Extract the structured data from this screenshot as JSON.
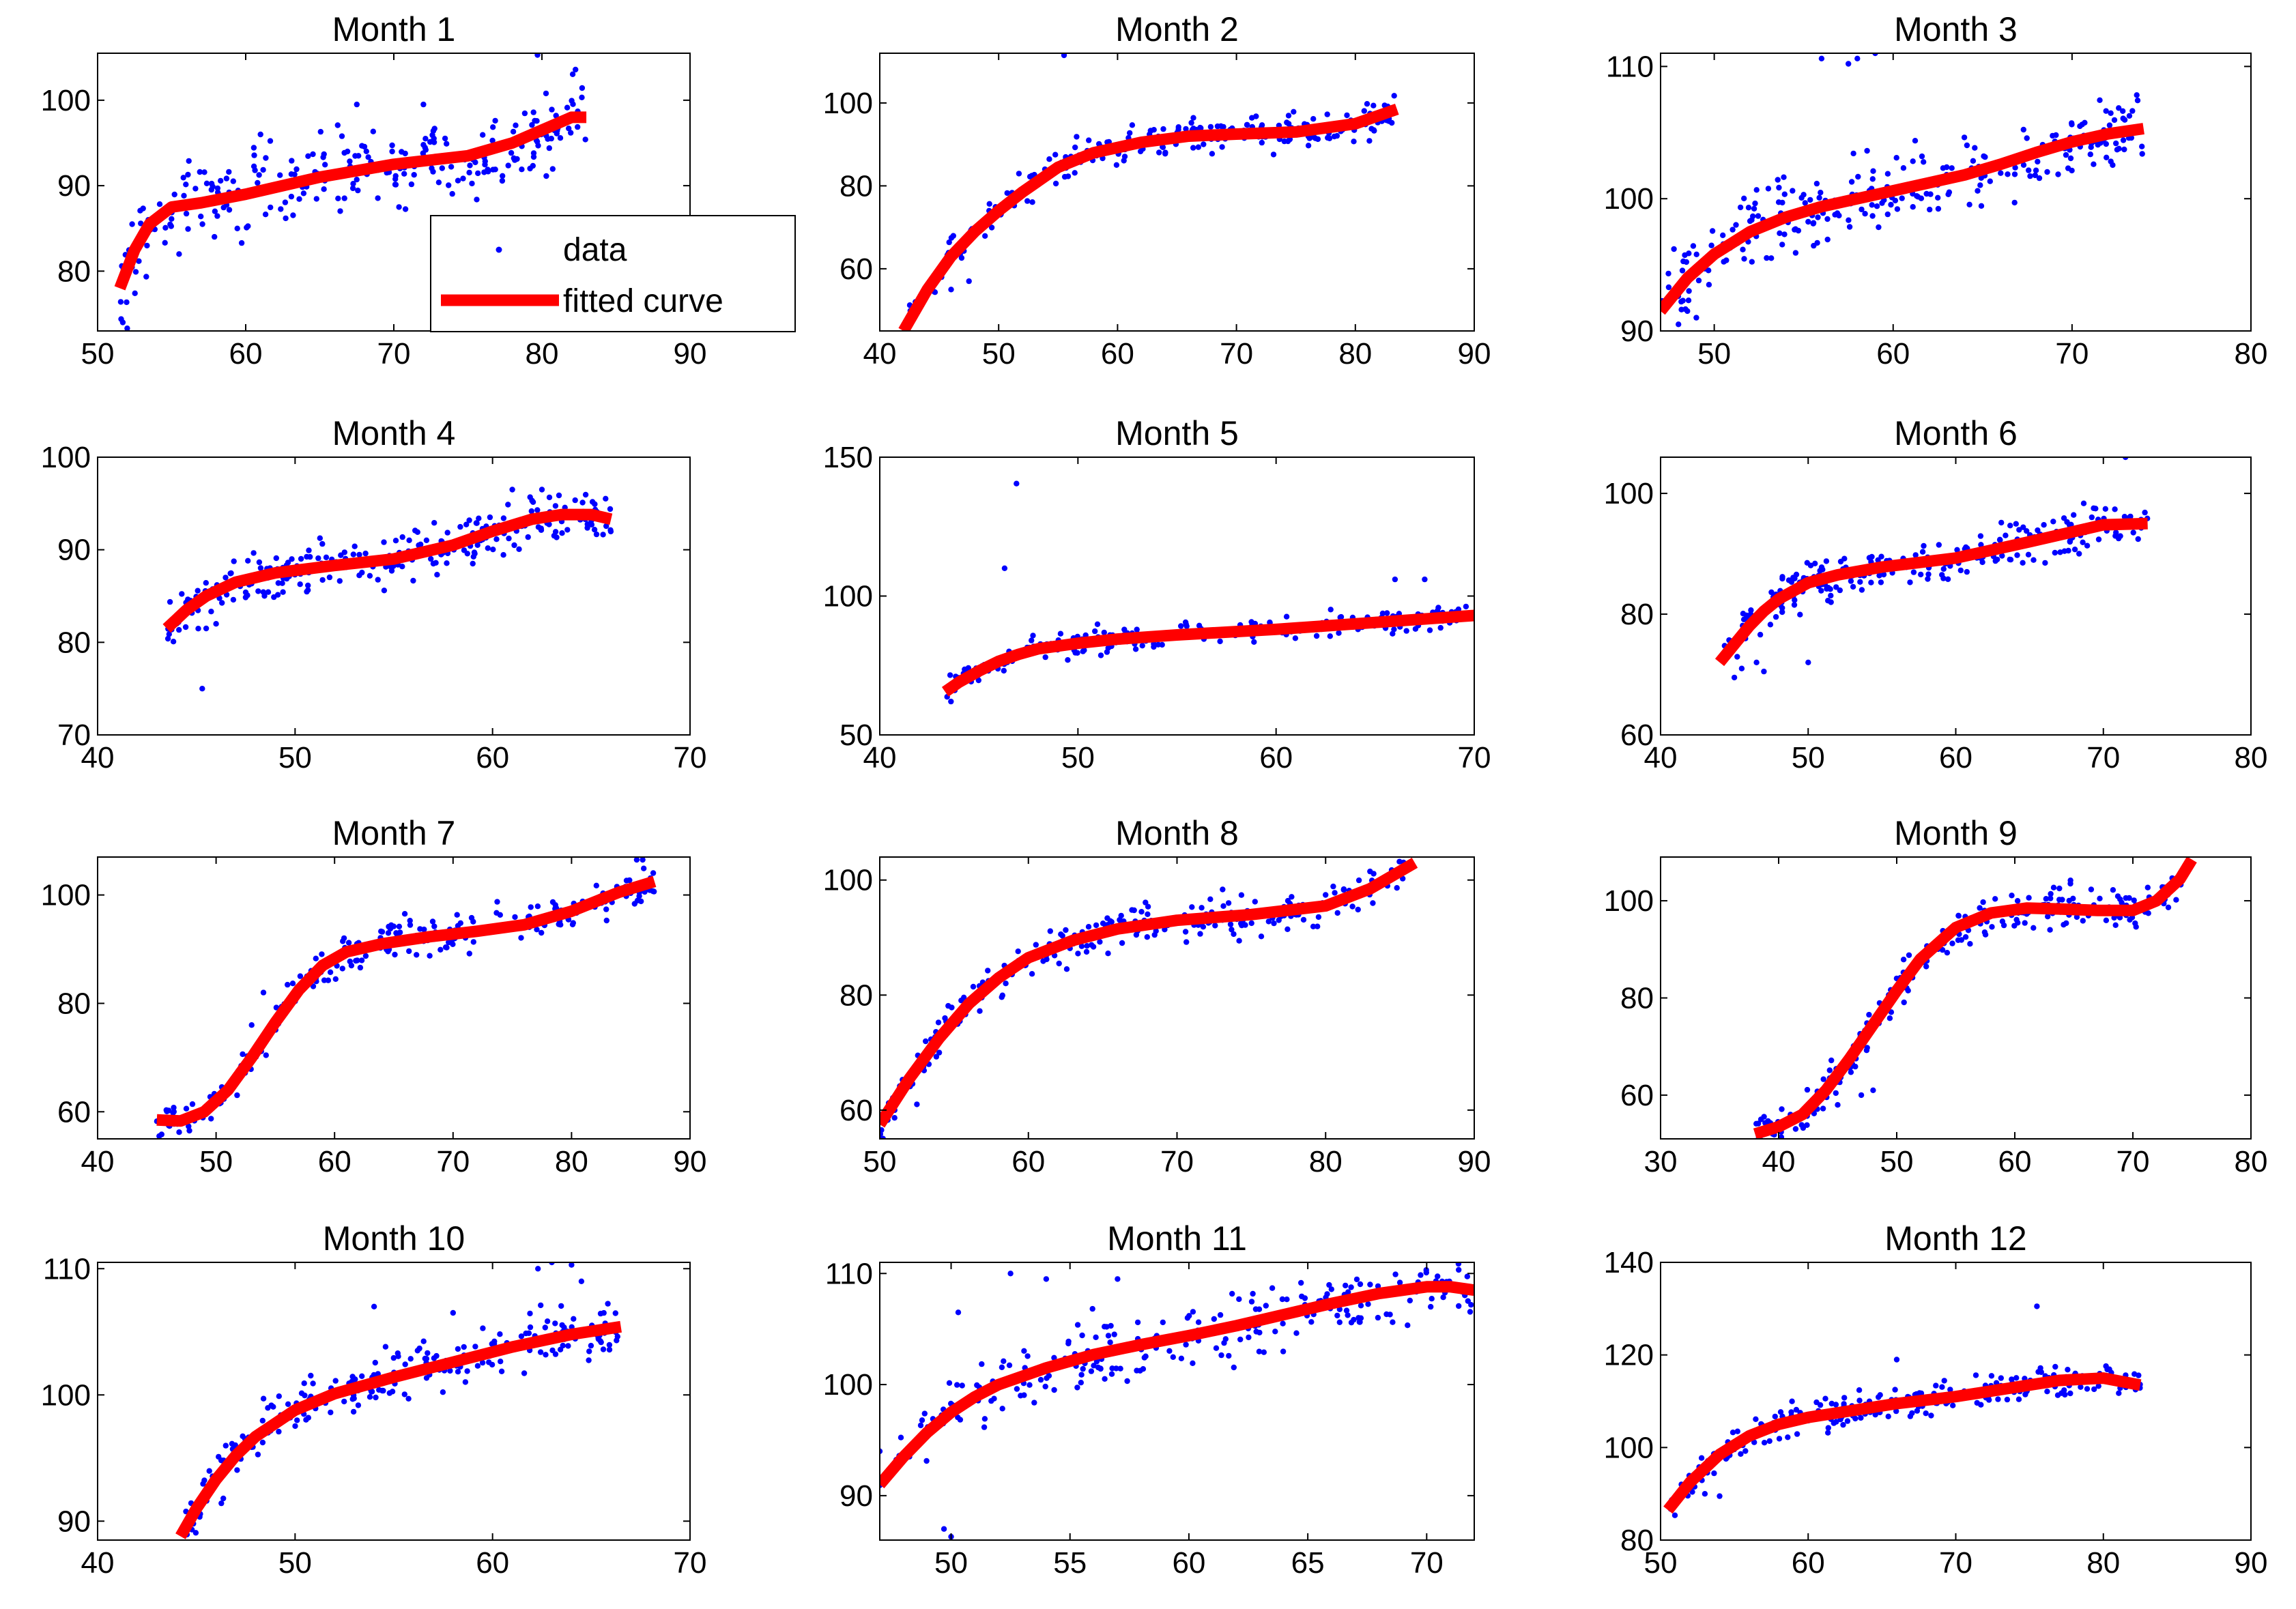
{
  "figure": {
    "background": "#ffffff"
  },
  "colors": {
    "data": "#0000ff",
    "fit": "#ff0000",
    "axes": "#000000"
  },
  "legend": {
    "entries": [
      "data",
      "fitted curve"
    ],
    "placement": "inside lower-right of Month 1"
  },
  "chart_data": [
    {
      "type": "scatter",
      "title": "Month 1",
      "xlim": [
        50,
        90
      ],
      "ylim": [
        73,
        105.5
      ],
      "xticks": [
        50,
        60,
        70,
        80,
        90
      ],
      "yticks": [
        80,
        90,
        100
      ],
      "fit": {
        "x": [
          51.5,
          52.5,
          53.5,
          55,
          57,
          60,
          65,
          70,
          75,
          78,
          80,
          82,
          83
        ],
        "y": [
          78,
          82.5,
          85.5,
          87.5,
          88,
          89,
          91,
          92.5,
          93.5,
          95,
          96.5,
          98,
          98
        ]
      },
      "outliers": [
        [
          51.7,
          74
        ],
        [
          52,
          73.3
        ],
        [
          55.5,
          82
        ],
        [
          61,
          96
        ],
        [
          67.5,
          99.5
        ],
        [
          72,
          99.5
        ],
        [
          79.7,
          105.3
        ]
      ],
      "spread": 3.5
    },
    {
      "type": "scatter",
      "title": "Month 2",
      "xlim": [
        40,
        90
      ],
      "ylim": [
        45,
        112
      ],
      "xticks": [
        40,
        50,
        60,
        70,
        80,
        90
      ],
      "yticks": [
        60,
        80,
        100
      ],
      "fit": {
        "x": [
          42,
          44,
          46,
          48,
          50,
          52,
          55,
          58,
          62,
          66,
          70,
          75,
          80,
          83.5
        ],
        "y": [
          45,
          55,
          63,
          69,
          74,
          78.5,
          84.5,
          88,
          90.5,
          92,
          92.5,
          93,
          95,
          98.5
        ]
      },
      "outliers": [
        [
          55.5,
          111.5
        ],
        [
          46,
          55
        ],
        [
          47.5,
          57
        ],
        [
          43,
          52
        ]
      ],
      "spread": 3
    },
    {
      "type": "scatter",
      "title": "Month 3",
      "xlim": [
        47,
        80
      ],
      "ylim": [
        90,
        111
      ],
      "xticks": [
        50,
        60,
        70,
        80
      ],
      "yticks": [
        90,
        100,
        110
      ],
      "fit": {
        "x": [
          47,
          48.5,
          50,
          52,
          54,
          56,
          58,
          60,
          62,
          64,
          66,
          68,
          70,
          72,
          74
        ],
        "y": [
          91.5,
          94,
          95.8,
          97.5,
          98.6,
          99.4,
          100,
          100.6,
          101.2,
          101.8,
          102.6,
          103.5,
          104.3,
          104.9,
          105.3
        ]
      },
      "outliers": [
        [
          56,
          110.6
        ],
        [
          58,
          110.6
        ],
        [
          59,
          111
        ],
        [
          57.5,
          110.2
        ],
        [
          48,
          90.5
        ],
        [
          49,
          91
        ],
        [
          48.5,
          91.5
        ]
      ],
      "spread": 2
    },
    {
      "type": "scatter",
      "title": "Month 4",
      "xlim": [
        40,
        70
      ],
      "ylim": [
        70,
        100
      ],
      "xticks": [
        40,
        50,
        60,
        70
      ],
      "yticks": [
        70,
        80,
        90,
        100
      ],
      "fit": {
        "x": [
          43.5,
          44.5,
          45.5,
          47,
          49,
          52,
          55,
          58,
          60,
          62,
          63.5,
          65,
          66
        ],
        "y": [
          81.5,
          83.5,
          85,
          86.5,
          87.5,
          88.3,
          89,
          90.5,
          92,
          93.3,
          93.8,
          93.8,
          93.3
        ]
      },
      "outliers": [
        [
          45.3,
          75
        ],
        [
          45.5,
          81.5
        ],
        [
          44,
          82
        ],
        [
          46,
          82
        ],
        [
          57,
          88.5
        ],
        [
          59,
          88.5
        ],
        [
          61,
          96.5
        ],
        [
          62.5,
          96.5
        ]
      ],
      "spread": 2
    },
    {
      "type": "scatter",
      "title": "Month 5",
      "xlim": [
        40,
        70
      ],
      "ylim": [
        50,
        150
      ],
      "xticks": [
        40,
        50,
        60,
        70
      ],
      "yticks": [
        50,
        100,
        150
      ],
      "fit": {
        "x": [
          43.3,
          44,
          45,
          46,
          47,
          48,
          50,
          52,
          55,
          60,
          65,
          70
        ],
        "y": [
          65.5,
          69,
          73,
          76.5,
          79,
          81,
          83,
          84.5,
          86,
          88,
          90.5,
          93
        ]
      },
      "outliers": [
        [
          46.9,
          140.5
        ],
        [
          46.3,
          110
        ],
        [
          66,
          106
        ],
        [
          67.5,
          106
        ]
      ],
      "spread": 3
    },
    {
      "type": "scatter",
      "title": "Month 6",
      "xlim": [
        40,
        80
      ],
      "ylim": [
        60,
        106
      ],
      "xticks": [
        40,
        50,
        60,
        70,
        80
      ],
      "yticks": [
        60,
        80,
        100
      ],
      "fit": {
        "x": [
          44,
          45,
          46,
          47,
          48,
          50,
          52,
          55,
          60,
          65,
          70,
          73
        ],
        "y": [
          72,
          75,
          78,
          80.5,
          82.5,
          85.2,
          86.5,
          87.8,
          89.3,
          92,
          94.8,
          95
        ]
      },
      "outliers": [
        [
          71.5,
          106
        ],
        [
          50,
          72
        ],
        [
          45,
          69.5
        ],
        [
          45.5,
          71
        ],
        [
          46.5,
          72
        ],
        [
          47,
          70.5
        ]
      ],
      "spread": 2.5
    },
    {
      "type": "scatter",
      "title": "Month 7",
      "xlim": [
        40,
        90
      ],
      "ylim": [
        55,
        107
      ],
      "xticks": [
        40,
        50,
        60,
        70,
        80,
        90
      ],
      "yticks": [
        60,
        80,
        100
      ],
      "fit": {
        "x": [
          45,
          47,
          49,
          51,
          53,
          55,
          57,
          59,
          61,
          64,
          68,
          72,
          76,
          80,
          84,
          87
        ],
        "y": [
          58.5,
          58.3,
          60,
          64,
          70,
          76.5,
          82.5,
          87,
          89.5,
          91,
          92.3,
          93.3,
          94.5,
          97,
          100.5,
          102.5
        ]
      },
      "outliers": [
        [
          45.2,
          55.5
        ],
        [
          53,
          76
        ],
        [
          54,
          82
        ],
        [
          85.5,
          106.5
        ],
        [
          86,
          106.5
        ]
      ],
      "spread": 2.5
    },
    {
      "type": "scatter",
      "title": "Month 8",
      "xlim": [
        50,
        90
      ],
      "ylim": [
        55,
        104
      ],
      "xticks": [
        50,
        60,
        70,
        80,
        90
      ],
      "yticks": [
        60,
        80,
        100
      ],
      "fit": {
        "x": [
          50,
          52,
          54,
          56,
          58,
          60,
          63,
          66,
          70,
          75,
          80,
          83,
          86
        ],
        "y": [
          57.5,
          65.5,
          72.5,
          78.5,
          83,
          86.5,
          89.5,
          91.5,
          93,
          94,
          95.5,
          98.5,
          103
        ]
      },
      "outliers": [
        [
          50,
          55.5
        ],
        [
          51,
          60
        ],
        [
          52.5,
          61
        ],
        [
          53,
          68
        ],
        [
          54,
          70
        ]
      ],
      "spread": 2.5
    },
    {
      "type": "scatter",
      "title": "Month 9",
      "xlim": [
        30,
        80
      ],
      "ylim": [
        51,
        109
      ],
      "xticks": [
        30,
        40,
        50,
        60,
        70,
        80
      ],
      "yticks": [
        60,
        80,
        100
      ],
      "fit": {
        "x": [
          38,
          40,
          42,
          44,
          46,
          48,
          50,
          52,
          55,
          58,
          61,
          64,
          67,
          70,
          72,
          74,
          75
        ],
        "y": [
          52,
          53.5,
          56,
          61,
          67.5,
          74.5,
          81.5,
          88,
          94.5,
          97.5,
          98.5,
          98.3,
          98,
          98,
          100,
          104.5,
          108.5
        ]
      },
      "outliers": [
        [
          41,
          56
        ],
        [
          43,
          57
        ],
        [
          45,
          58
        ],
        [
          47,
          60
        ],
        [
          48,
          61
        ],
        [
          38.5,
          55
        ]
      ],
      "spread": 3
    },
    {
      "type": "scatter",
      "title": "Month 10",
      "xlim": [
        40,
        70
      ],
      "ylim": [
        88.5,
        110.5
      ],
      "xticks": [
        40,
        50,
        60,
        70
      ],
      "yticks": [
        90,
        100,
        110
      ],
      "fit": {
        "x": [
          44.2,
          45,
          46,
          47,
          48,
          50,
          52,
          55,
          58,
          61,
          64,
          66.5
        ],
        "y": [
          88.8,
          91,
          93.3,
          95.2,
          96.7,
          98.8,
          100.1,
          101.4,
          102.6,
          103.8,
          104.8,
          105.4
        ]
      },
      "outliers": [
        [
          63,
          110.5
        ],
        [
          64,
          110.3
        ],
        [
          62.3,
          110
        ],
        [
          64.5,
          109
        ],
        [
          54,
          107
        ],
        [
          58,
          106.5
        ]
      ],
      "spread": 1.5
    },
    {
      "type": "scatter",
      "title": "Month 11",
      "xlim": [
        47,
        72
      ],
      "ylim": [
        86,
        111
      ],
      "xticks": [
        50,
        55,
        60,
        65,
        70
      ],
      "yticks": [
        90,
        100,
        110
      ],
      "fit": {
        "x": [
          47,
          48,
          49,
          50,
          51,
          52,
          54,
          56,
          58,
          60,
          62,
          64,
          66,
          68,
          70,
          71,
          72
        ],
        "y": [
          91,
          93.5,
          95.7,
          97.5,
          98.9,
          100,
          101.5,
          102.7,
          103.6,
          104.4,
          105.3,
          106.3,
          107.3,
          108.2,
          108.8,
          108.8,
          108.5
        ]
      },
      "outliers": [
        [
          50,
          86.3
        ],
        [
          49.7,
          87
        ],
        [
          50.3,
          106.5
        ],
        [
          52.5,
          110
        ],
        [
          54,
          109.5
        ],
        [
          57,
          109.5
        ],
        [
          47,
          94
        ]
      ],
      "spread": 2
    },
    {
      "type": "scatter",
      "title": "Month 12",
      "xlim": [
        50,
        90
      ],
      "ylim": [
        80,
        140
      ],
      "xticks": [
        50,
        60,
        70,
        80,
        90
      ],
      "yticks": [
        80,
        100,
        120,
        140
      ],
      "fit": {
        "x": [
          50.5,
          52,
          54,
          56,
          58,
          60,
          63,
          66,
          70,
          74,
          77,
          80,
          82.5
        ],
        "y": [
          86.5,
          92.5,
          98.5,
          102.5,
          105,
          106.5,
          108,
          109.5,
          111,
          113,
          114.5,
          115,
          113.5
        ]
      },
      "outliers": [
        [
          75.5,
          130.5
        ],
        [
          66,
          119
        ],
        [
          51,
          88
        ],
        [
          53,
          90
        ],
        [
          54,
          89.5
        ]
      ],
      "spread": 2.5
    }
  ]
}
